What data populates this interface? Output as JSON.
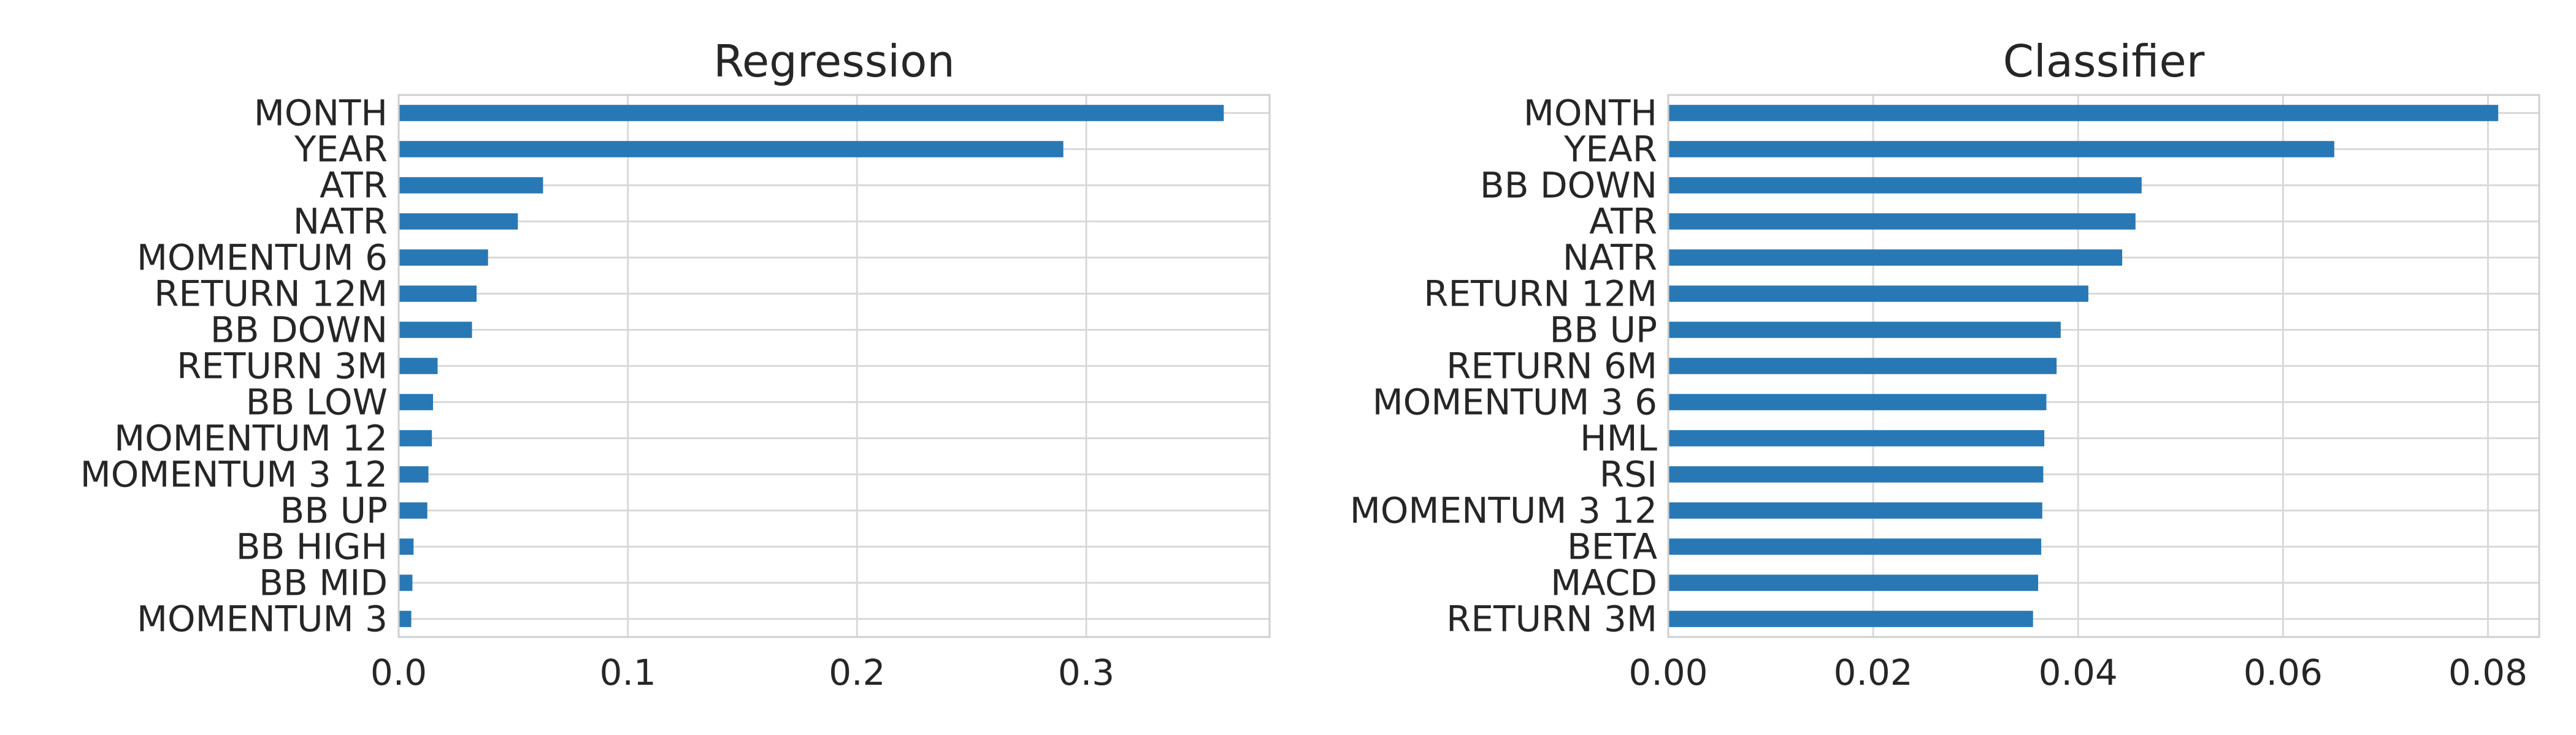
{
  "chart_data": [
    {
      "type": "bar",
      "orientation": "horizontal",
      "title": "Regression",
      "xlabel": "",
      "ylabel": "",
      "xlim": [
        0,
        0.38
      ],
      "xticks": [
        0.0,
        0.1,
        0.2,
        0.3
      ],
      "xtick_labels": [
        "0.0",
        "0.1",
        "0.2",
        "0.3"
      ],
      "grid": true,
      "color": "#2878b5",
      "categories": [
        "MONTH",
        "YEAR",
        "ATR",
        "NATR",
        "MOMENTUM 6",
        "RETURN 12M",
        "BB DOWN",
        "RETURN 3M",
        "BB LOW",
        "MOMENTUM 12",
        "MOMENTUM 3 12",
        "BB UP",
        "BB HIGH",
        "BB MID",
        "MOMENTUM 3"
      ],
      "values": [
        0.36,
        0.29,
        0.063,
        0.052,
        0.039,
        0.034,
        0.032,
        0.017,
        0.015,
        0.0145,
        0.013,
        0.0125,
        0.0065,
        0.006,
        0.0055
      ]
    },
    {
      "type": "bar",
      "orientation": "horizontal",
      "title": "Classifier",
      "xlabel": "",
      "ylabel": "",
      "xlim": [
        0,
        0.085
      ],
      "xticks": [
        0.0,
        0.02,
        0.04,
        0.06,
        0.08
      ],
      "xtick_labels": [
        "0.00",
        "0.02",
        "0.04",
        "0.06",
        "0.08"
      ],
      "grid": true,
      "color": "#2878b5",
      "categories": [
        "MONTH",
        "YEAR",
        "BB DOWN",
        "ATR",
        "NATR",
        "RETURN 12M",
        "BB UP",
        "RETURN 6M",
        "MOMENTUM 3 6",
        "HML",
        "RSI",
        "MOMENTUM 3 12",
        "BETA",
        "MACD",
        "RETURN 3M"
      ],
      "values": [
        0.081,
        0.065,
        0.0462,
        0.0456,
        0.0443,
        0.041,
        0.0383,
        0.0379,
        0.0369,
        0.0367,
        0.0366,
        0.0365,
        0.0364,
        0.0361,
        0.0356
      ]
    }
  ]
}
